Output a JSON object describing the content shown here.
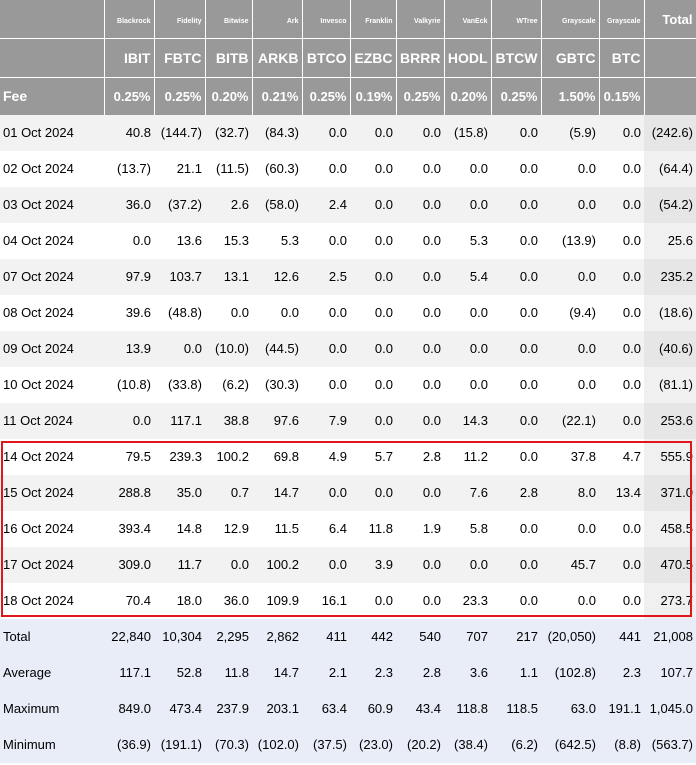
{
  "issuers": [
    "",
    "Blackrock",
    "Fidelity",
    "Bitwise",
    "Ark",
    "Invesco",
    "Franklin",
    "Valkyrie",
    "VanEck",
    "WTree",
    "Grayscale",
    "Grayscale",
    "Total"
  ],
  "tickers": [
    "",
    "IBIT",
    "FBTC",
    "BITB",
    "ARKB",
    "BTCO",
    "EZBC",
    "BRRR",
    "HODL",
    "BTCW",
    "GBTC",
    "BTC",
    ""
  ],
  "fees": [
    "Fee",
    "0.25%",
    "0.25%",
    "0.20%",
    "0.21%",
    "0.25%",
    "0.19%",
    "0.25%",
    "0.20%",
    "0.25%",
    "1.50%",
    "0.15%",
    ""
  ],
  "rows": [
    [
      "01 Oct 2024",
      "40.8",
      "(144.7)",
      "(32.7)",
      "(84.3)",
      "0.0",
      "0.0",
      "0.0",
      "(15.8)",
      "0.0",
      "(5.9)",
      "0.0",
      "(242.6)"
    ],
    [
      "02 Oct 2024",
      "(13.7)",
      "21.1",
      "(11.5)",
      "(60.3)",
      "0.0",
      "0.0",
      "0.0",
      "0.0",
      "0.0",
      "0.0",
      "0.0",
      "(64.4)"
    ],
    [
      "03 Oct 2024",
      "36.0",
      "(37.2)",
      "2.6",
      "(58.0)",
      "2.4",
      "0.0",
      "0.0",
      "0.0",
      "0.0",
      "0.0",
      "0.0",
      "(54.2)"
    ],
    [
      "04 Oct 2024",
      "0.0",
      "13.6",
      "15.3",
      "5.3",
      "0.0",
      "0.0",
      "0.0",
      "5.3",
      "0.0",
      "(13.9)",
      "0.0",
      "25.6"
    ],
    [
      "07 Oct 2024",
      "97.9",
      "103.7",
      "13.1",
      "12.6",
      "2.5",
      "0.0",
      "0.0",
      "5.4",
      "0.0",
      "0.0",
      "0.0",
      "235.2"
    ],
    [
      "08 Oct 2024",
      "39.6",
      "(48.8)",
      "0.0",
      "0.0",
      "0.0",
      "0.0",
      "0.0",
      "0.0",
      "0.0",
      "(9.4)",
      "0.0",
      "(18.6)"
    ],
    [
      "09 Oct 2024",
      "13.9",
      "0.0",
      "(10.0)",
      "(44.5)",
      "0.0",
      "0.0",
      "0.0",
      "0.0",
      "0.0",
      "0.0",
      "0.0",
      "(40.6)"
    ],
    [
      "10 Oct 2024",
      "(10.8)",
      "(33.8)",
      "(6.2)",
      "(30.3)",
      "0.0",
      "0.0",
      "0.0",
      "0.0",
      "0.0",
      "0.0",
      "0.0",
      "(81.1)"
    ],
    [
      "11 Oct 2024",
      "0.0",
      "117.1",
      "38.8",
      "97.6",
      "7.9",
      "0.0",
      "0.0",
      "14.3",
      "0.0",
      "(22.1)",
      "0.0",
      "253.6"
    ],
    [
      "14 Oct 2024",
      "79.5",
      "239.3",
      "100.2",
      "69.8",
      "4.9",
      "5.7",
      "2.8",
      "11.2",
      "0.0",
      "37.8",
      "4.7",
      "555.9"
    ],
    [
      "15 Oct 2024",
      "288.8",
      "35.0",
      "0.7",
      "14.7",
      "0.0",
      "0.0",
      "0.0",
      "7.6",
      "2.8",
      "8.0",
      "13.4",
      "371.0"
    ],
    [
      "16 Oct 2024",
      "393.4",
      "14.8",
      "12.9",
      "11.5",
      "6.4",
      "11.8",
      "1.9",
      "5.8",
      "0.0",
      "0.0",
      "0.0",
      "458.5"
    ],
    [
      "17 Oct 2024",
      "309.0",
      "11.7",
      "0.0",
      "100.2",
      "0.0",
      "3.9",
      "0.0",
      "0.0",
      "0.0",
      "45.7",
      "0.0",
      "470.5"
    ],
    [
      "18 Oct 2024",
      "70.4",
      "18.0",
      "36.0",
      "109.9",
      "16.1",
      "0.0",
      "0.0",
      "23.3",
      "0.0",
      "0.0",
      "0.0",
      "273.7"
    ]
  ],
  "summary": [
    [
      "Total",
      "22,840",
      "10,304",
      "2,295",
      "2,862",
      "411",
      "442",
      "540",
      "707",
      "217",
      "(20,050)",
      "441",
      "21,008"
    ],
    [
      "Average",
      "117.1",
      "52.8",
      "11.8",
      "14.7",
      "2.1",
      "2.3",
      "2.8",
      "3.6",
      "1.1",
      "(102.8)",
      "2.3",
      "107.7"
    ],
    [
      "Maximum",
      "849.0",
      "473.4",
      "237.9",
      "203.1",
      "63.4",
      "60.9",
      "43.4",
      "118.8",
      "118.5",
      "63.0",
      "191.1",
      "1,045.0"
    ],
    [
      "Minimum",
      "(36.9)",
      "(191.1)",
      "(70.3)",
      "(102.0)",
      "(37.5)",
      "(23.0)",
      "(20.2)",
      "(38.4)",
      "(6.2)",
      "(642.5)",
      "(8.8)",
      "(563.7)"
    ]
  ],
  "colors": {
    "header_bg": "#999999",
    "negative": "#e00000",
    "highlight_border": "#e0161b",
    "summary_bg": "#e8edf7"
  }
}
